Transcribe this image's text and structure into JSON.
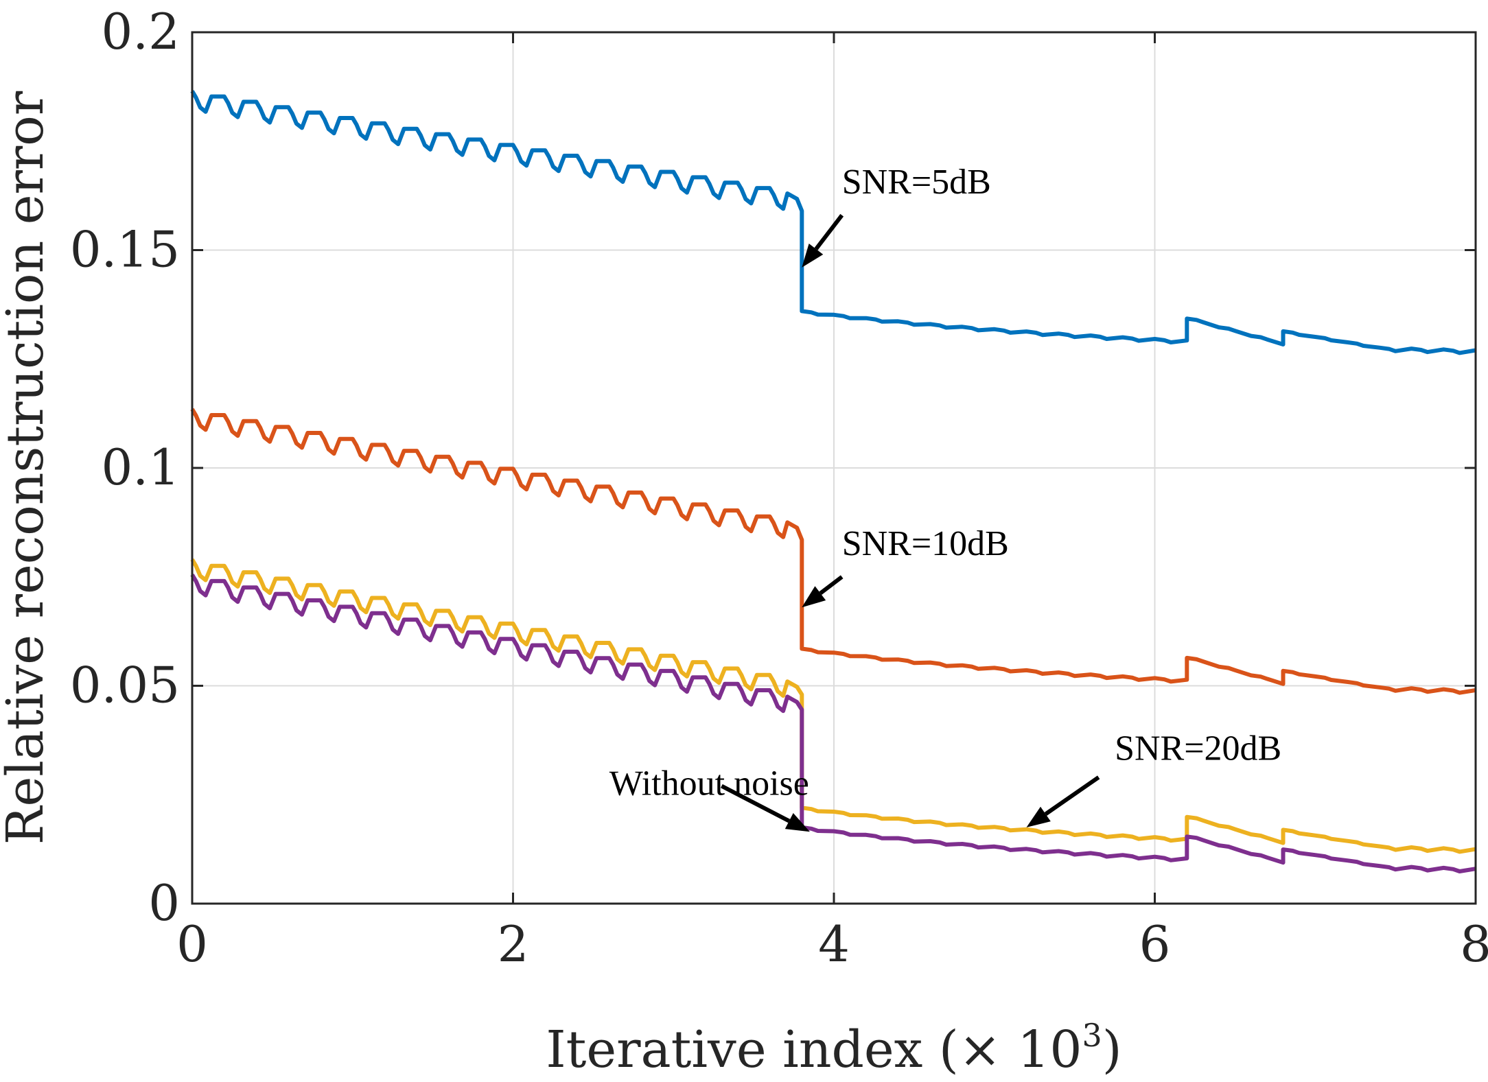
{
  "chart_data": {
    "type": "line",
    "title": "",
    "xlabel": "Iterative index (× 10",
    "xlabel_exponent": "3",
    "xlabel_close": ")",
    "ylabel": "Relative reconstruction error",
    "xlim": [
      0,
      8
    ],
    "ylim": [
      0,
      0.2
    ],
    "xticks": [
      0,
      2,
      4,
      6,
      8
    ],
    "xtick_labels": [
      "0",
      "2",
      "4",
      "6",
      "8"
    ],
    "yticks": [
      0,
      0.05,
      0.1,
      0.15,
      0.2
    ],
    "ytick_labels": [
      "0",
      "0.05",
      "0.1",
      "0.15",
      "0.2"
    ],
    "grid": true,
    "series": [
      {
        "name": "SNR=5dB",
        "color": "#0072BD",
        "start": 0.1865,
        "pre_drop_end": 0.163,
        "drop_top": 0.159,
        "post_drop": 0.136,
        "end": 0.127,
        "restart_jump_1": 0.005,
        "restart_jump_2": 0.003,
        "sawtooth_amplitude": 0.005
      },
      {
        "name": "SNR=10dB",
        "color": "#D95319",
        "start": 0.1135,
        "pre_drop_end": 0.0875,
        "drop_top": 0.0835,
        "post_drop": 0.0585,
        "end": 0.049,
        "restart_jump_1": 0.005,
        "restart_jump_2": 0.003,
        "sawtooth_amplitude": 0.005
      },
      {
        "name": "SNR=20dB",
        "color": "#EDB120",
        "start": 0.079,
        "pre_drop_end": 0.051,
        "drop_top": 0.048,
        "post_drop": 0.022,
        "end": 0.0125,
        "restart_jump_1": 0.005,
        "restart_jump_2": 0.003,
        "sawtooth_amplitude": 0.005
      },
      {
        "name": "Without noise",
        "color": "#7E2F8E",
        "start": 0.0755,
        "pre_drop_end": 0.0475,
        "drop_top": 0.0445,
        "post_drop": 0.0175,
        "end": 0.008,
        "restart_jump_1": 0.005,
        "restart_jump_2": 0.003,
        "sawtooth_amplitude": 0.005
      }
    ],
    "sawtooth_period": 0.2,
    "drop_at": 3.8,
    "restart_1_at": 6.2,
    "restart_2_at": 6.8,
    "annotations": [
      {
        "text": "SNR=5dB",
        "text_x": 4.05,
        "text_y": 0.163,
        "arrow_from": [
          4.05,
          0.158
        ],
        "arrow_to": [
          3.8,
          0.146
        ]
      },
      {
        "text": "SNR=10dB",
        "text_x": 4.05,
        "text_y": 0.08,
        "arrow_from": [
          4.05,
          0.075
        ],
        "arrow_to": [
          3.8,
          0.068
        ]
      },
      {
        "text": "SNR=20dB",
        "text_x": 5.75,
        "text_y": 0.033,
        "arrow_from": [
          5.65,
          0.029
        ],
        "arrow_to": [
          5.2,
          0.0175
        ]
      },
      {
        "text": "Without noise",
        "text_x": 2.6,
        "text_y": 0.025,
        "arrow_from": [
          3.3,
          0.027
        ],
        "arrow_to": [
          3.85,
          0.0165
        ]
      }
    ]
  }
}
